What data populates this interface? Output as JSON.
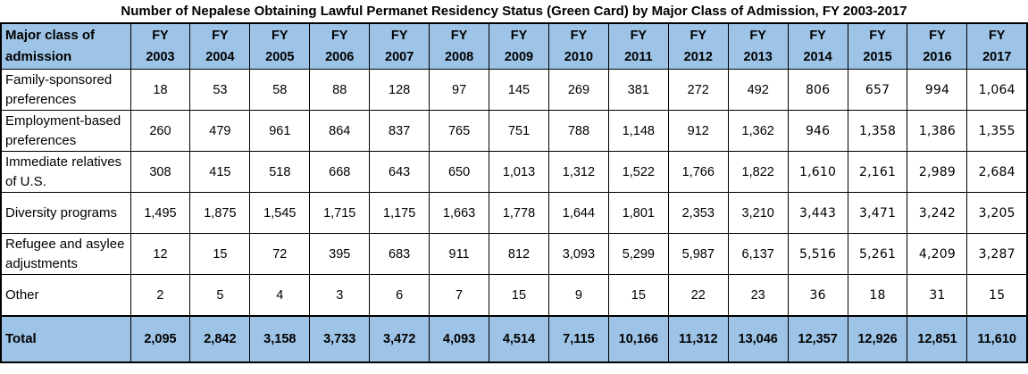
{
  "title": "Number of Nepalese Obtaining Lawful Permanet Residency Status (Green Card) by Major Class of Admission, FY 2003-2017",
  "colors": {
    "header_bg": "#9DC3E6",
    "border": "#000000",
    "text": "#000000",
    "page_bg": "#FFFFFF"
  },
  "chart_data": {
    "type": "table",
    "title": "Number of Nepalese Obtaining Lawful Permanet Residency Status (Green Card) by Major Class of Admission, FY 2003-2017",
    "row_header_label": "Major class of admission",
    "columns": [
      "FY 2003",
      "FY 2004",
      "FY 2005",
      "FY 2006",
      "FY 2007",
      "FY 2008",
      "FY 2009",
      "FY 2010",
      "FY 2011",
      "FY 2012",
      "FY 2013",
      "FY 2014",
      "FY 2015",
      "FY 2016",
      "FY 2017"
    ],
    "rows": [
      {
        "label": "Family-sponsored preferences",
        "values": [
          "18",
          "53",
          "58",
          "88",
          "128",
          "97",
          "145",
          "269",
          "381",
          "272",
          "492",
          "806",
          "657",
          "994",
          "1,064"
        ]
      },
      {
        "label": "Employment-based preferences",
        "values": [
          "260",
          "479",
          "961",
          "864",
          "837",
          "765",
          "751",
          "788",
          "1,148",
          "912",
          "1,362",
          "946",
          "1,358",
          "1,386",
          "1,355"
        ]
      },
      {
        "label": "Immediate relatives of U.S.",
        "values": [
          "308",
          "415",
          "518",
          "668",
          "643",
          "650",
          "1,013",
          "1,312",
          "1,522",
          "1,766",
          "1,822",
          "1,610",
          "2,161",
          "2,989",
          "2,684"
        ]
      },
      {
        "label": "Diversity programs",
        "values": [
          "1,495",
          "1,875",
          "1,545",
          "1,715",
          "1,175",
          "1,663",
          "1,778",
          "1,644",
          "1,801",
          "2,353",
          "3,210",
          "3,443",
          "3,471",
          "3,242",
          "3,205"
        ]
      },
      {
        "label": "Refugee and asylee adjustments",
        "values": [
          "12",
          "15",
          "72",
          "395",
          "683",
          "911",
          "812",
          "3,093",
          "5,299",
          "5,987",
          "6,137",
          "5,516",
          "5,261",
          "4,209",
          "3,287"
        ]
      },
      {
        "label": "Other",
        "values": [
          "2",
          "5",
          "4",
          "3",
          "6",
          "7",
          "15",
          "9",
          "15",
          "22",
          "23",
          "36",
          "18",
          "31",
          "15"
        ]
      }
    ],
    "total": {
      "label": "Total",
      "values": [
        "2,095",
        "2,842",
        "3,158",
        "3,733",
        "3,472",
        "4,093",
        "4,514",
        "7,115",
        "10,166",
        "11,312",
        "13,046",
        "12,357",
        "12,926",
        "12,851",
        "11,610"
      ]
    },
    "layout": {
      "grid": true,
      "alt_font_columns": [
        "FY 2014",
        "FY 2015",
        "FY 2016",
        "FY 2017"
      ]
    }
  }
}
